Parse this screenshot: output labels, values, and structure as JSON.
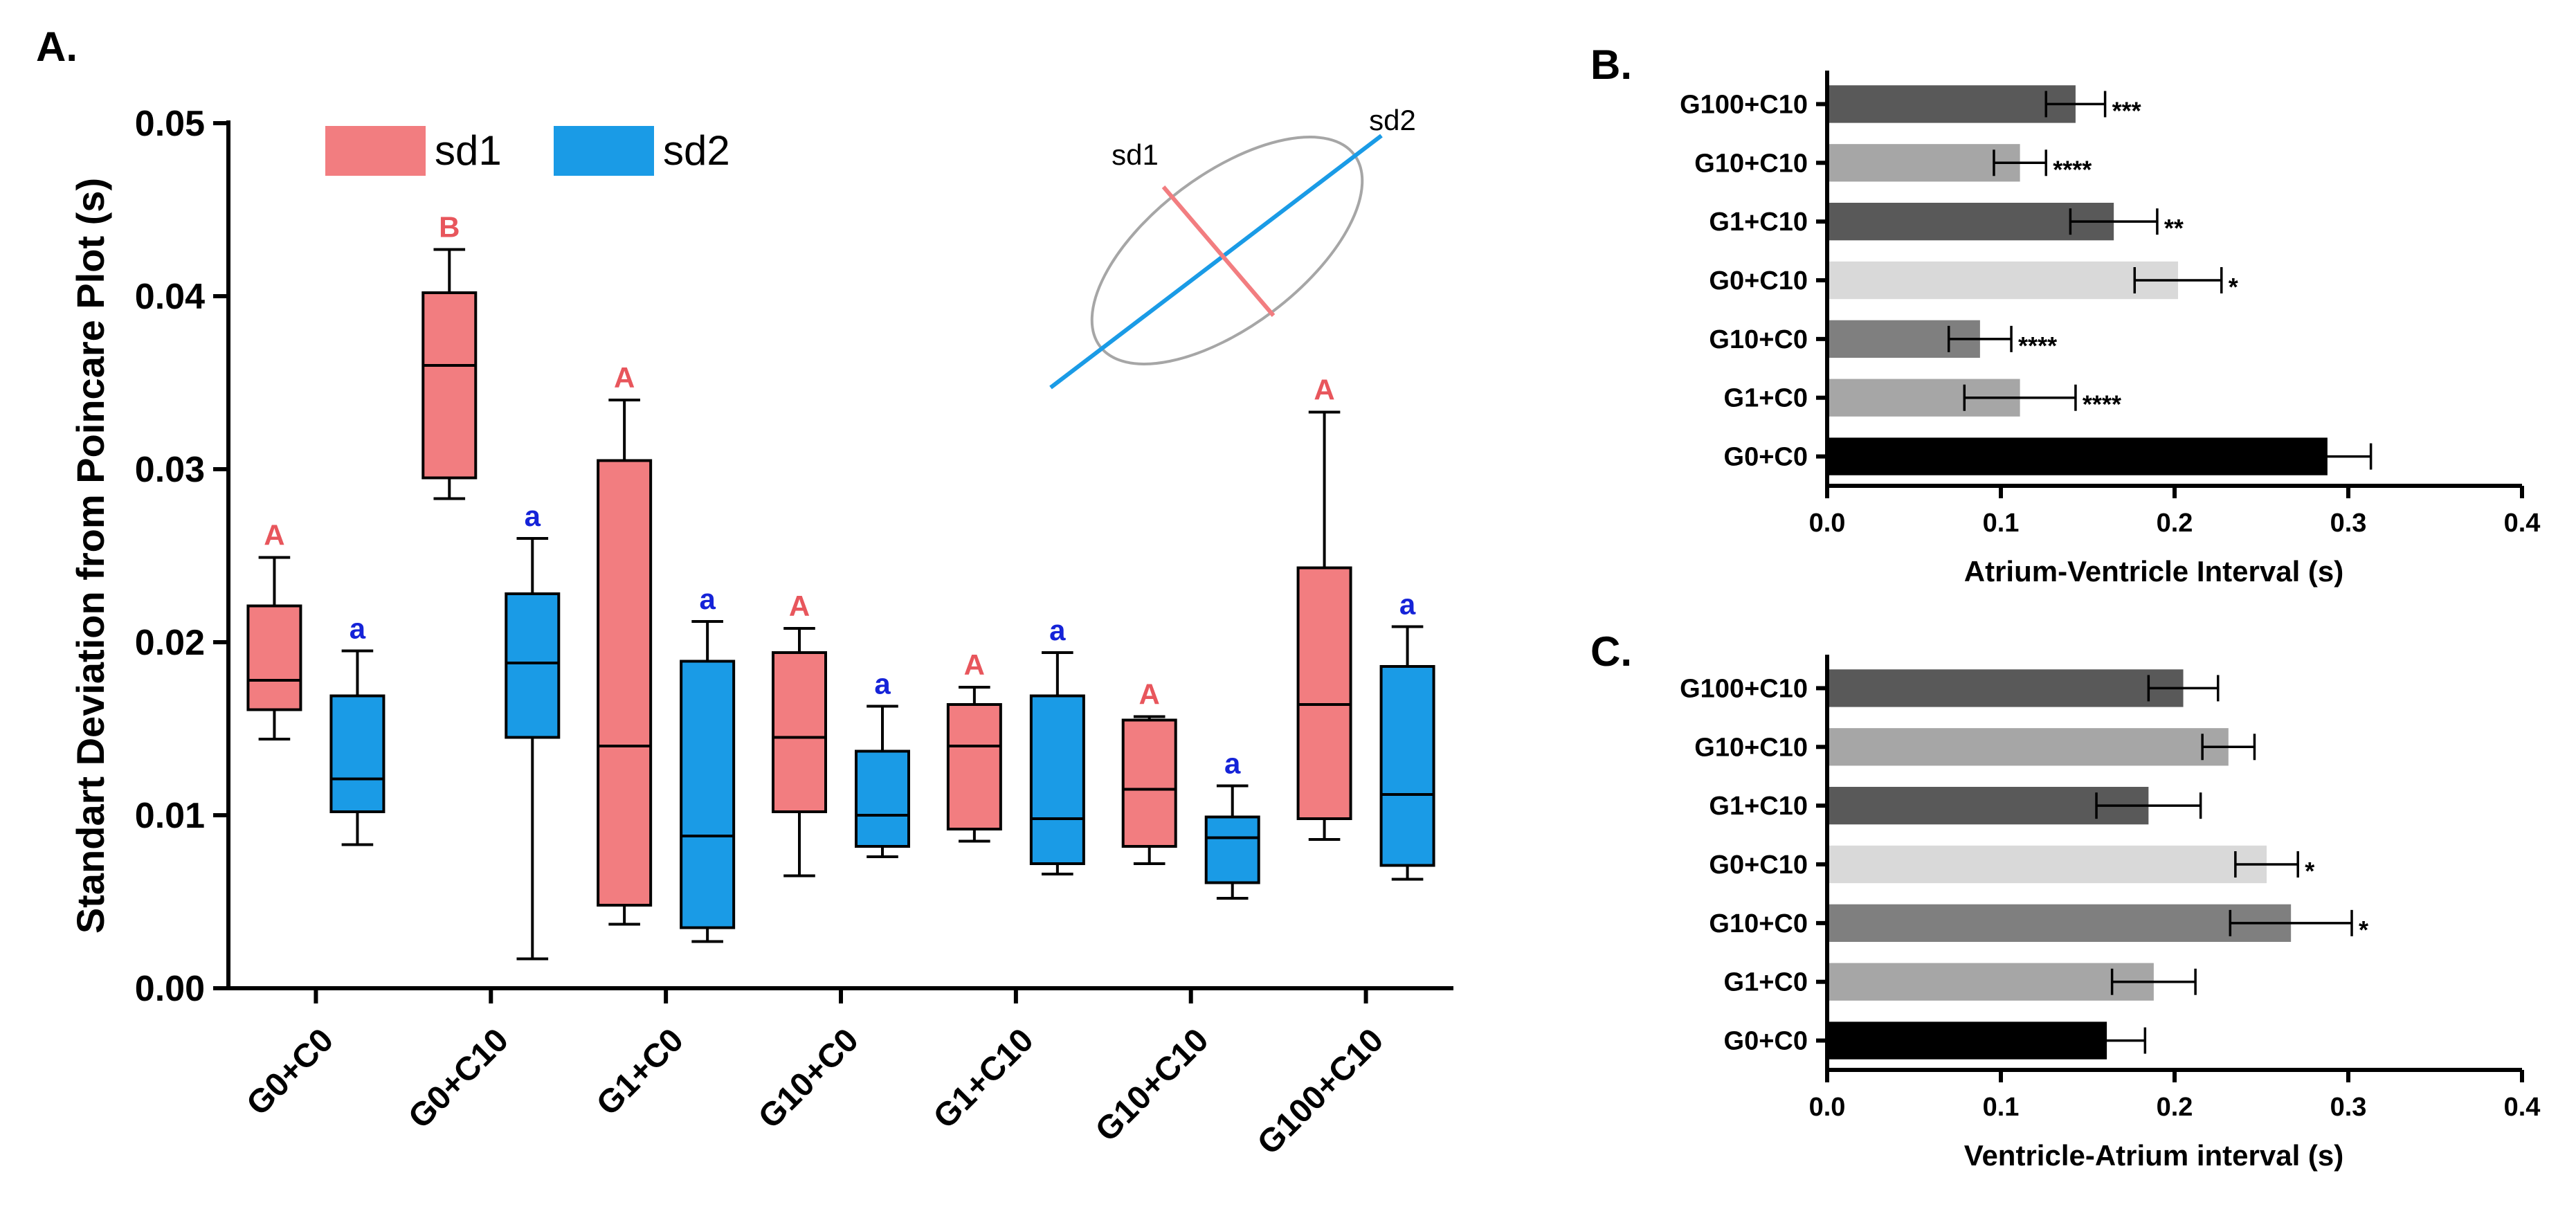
{
  "colors": {
    "sd1": "#F27D80",
    "sd2": "#1A9BE6",
    "sd1_letter": "#E8565C",
    "sd2_letter": "#1523D8",
    "inset_ellipse": "#A6A6A6",
    "inset_sd1": "#F27D80",
    "inset_sd2": "#1A9BE6"
  },
  "panels": {
    "a_label": "A.",
    "b_label": "B.",
    "c_label": "C."
  },
  "chart_data": [
    {
      "id": "A",
      "type": "box",
      "ylabel": "Standart  Deviation from Poincare Plot (s)",
      "ylim": [
        0,
        0.05
      ],
      "yticks": [
        "0.00",
        "0.01",
        "0.02",
        "0.03",
        "0.04",
        "0.05"
      ],
      "legend": [
        {
          "name": "sd1",
          "color_key": "sd1"
        },
        {
          "name": "sd2",
          "color_key": "sd2"
        }
      ],
      "legend_position": "top-left",
      "inset": {
        "sd1_label": "sd1",
        "sd2_label": "sd2"
      },
      "categories": [
        "G0+C0",
        "G0+C10",
        "G1+C0",
        "G10+C0",
        "G1+C10",
        "G10+C10",
        "G100+C10"
      ],
      "series": [
        {
          "name": "sd1",
          "boxes": [
            {
              "min": 0.0144,
              "q1": 0.0161,
              "median": 0.0178,
              "q3": 0.0221,
              "max": 0.0249,
              "letter": "A"
            },
            {
              "min": 0.0283,
              "q1": 0.0295,
              "median": 0.036,
              "q3": 0.0402,
              "max": 0.0427,
              "letter": "B"
            },
            {
              "min": 0.0037,
              "q1": 0.0048,
              "median": 0.014,
              "q3": 0.0305,
              "max": 0.034,
              "letter": "A"
            },
            {
              "min": 0.0065,
              "q1": 0.0102,
              "median": 0.0145,
              "q3": 0.0194,
              "max": 0.0208,
              "letter": "A"
            },
            {
              "min": 0.0085,
              "q1": 0.0092,
              "median": 0.014,
              "q3": 0.0164,
              "max": 0.0174,
              "letter": "A"
            },
            {
              "min": 0.0072,
              "q1": 0.0082,
              "median": 0.0115,
              "q3": 0.0155,
              "max": 0.0157,
              "letter": "A"
            },
            {
              "min": 0.0086,
              "q1": 0.0098,
              "median": 0.0164,
              "q3": 0.0243,
              "max": 0.0333,
              "letter": "A"
            }
          ]
        },
        {
          "name": "sd2",
          "boxes": [
            {
              "min": 0.0083,
              "q1": 0.0102,
              "median": 0.0121,
              "q3": 0.0169,
              "max": 0.0195,
              "letter": "a"
            },
            {
              "min": 0.0017,
              "q1": 0.0145,
              "median": 0.0188,
              "q3": 0.0228,
              "max": 0.026,
              "letter": "a"
            },
            {
              "min": 0.0027,
              "q1": 0.0035,
              "median": 0.0088,
              "q3": 0.0189,
              "max": 0.0212,
              "letter": "a"
            },
            {
              "min": 0.0076,
              "q1": 0.0082,
              "median": 0.01,
              "q3": 0.0137,
              "max": 0.0163,
              "letter": "a"
            },
            {
              "min": 0.0066,
              "q1": 0.0072,
              "median": 0.0098,
              "q3": 0.0169,
              "max": 0.0194,
              "letter": "a"
            },
            {
              "min": 0.0052,
              "q1": 0.0061,
              "median": 0.0087,
              "q3": 0.0099,
              "max": 0.0117,
              "letter": "a"
            },
            {
              "min": 0.0063,
              "q1": 0.0071,
              "median": 0.0112,
              "q3": 0.0186,
              "max": 0.0209,
              "letter": "a"
            }
          ]
        }
      ]
    },
    {
      "id": "B",
      "type": "bar",
      "orientation": "horizontal",
      "xlabel": "Atrium-Ventricle Interval (s)",
      "xlim": [
        0,
        0.4
      ],
      "xticks": [
        "0.0",
        "0.1",
        "0.2",
        "0.3",
        "0.4"
      ],
      "categories": [
        "G100+C10",
        "G10+C10",
        "G1+C10",
        "G0+C10",
        "G10+C0",
        "G1+C0",
        "G0+C0"
      ],
      "values": [
        0.143,
        0.111,
        0.165,
        0.202,
        0.088,
        0.111,
        0.288
      ],
      "errors": [
        0.017,
        0.015,
        0.025,
        0.025,
        0.018,
        0.032,
        0.025
      ],
      "significance": [
        "***",
        "****",
        "**",
        "*",
        "****",
        "****",
        ""
      ],
      "bar_colors": [
        "#595959",
        "#A6A6A6",
        "#595959",
        "#D9D9D9",
        "#7F7F7F",
        "#A6A6A6",
        "#000000"
      ]
    },
    {
      "id": "C",
      "type": "bar",
      "orientation": "horizontal",
      "xlabel": "Ventricle-Atrium interval (s)",
      "xlim": [
        0,
        0.4
      ],
      "xticks": [
        "0.0",
        "0.1",
        "0.2",
        "0.3",
        "0.4"
      ],
      "categories": [
        "G100+C10",
        "G10+C10",
        "G1+C10",
        "G0+C10",
        "G10+C0",
        "G1+C0",
        "G0+C0"
      ],
      "values": [
        0.205,
        0.231,
        0.185,
        0.253,
        0.267,
        0.188,
        0.161
      ],
      "errors": [
        0.02,
        0.015,
        0.03,
        0.018,
        0.035,
        0.024,
        0.022
      ],
      "significance": [
        "",
        "",
        "",
        "*",
        "*",
        "",
        ""
      ],
      "bar_colors": [
        "#595959",
        "#A6A6A6",
        "#595959",
        "#D9D9D9",
        "#7F7F7F",
        "#A6A6A6",
        "#000000"
      ]
    }
  ]
}
